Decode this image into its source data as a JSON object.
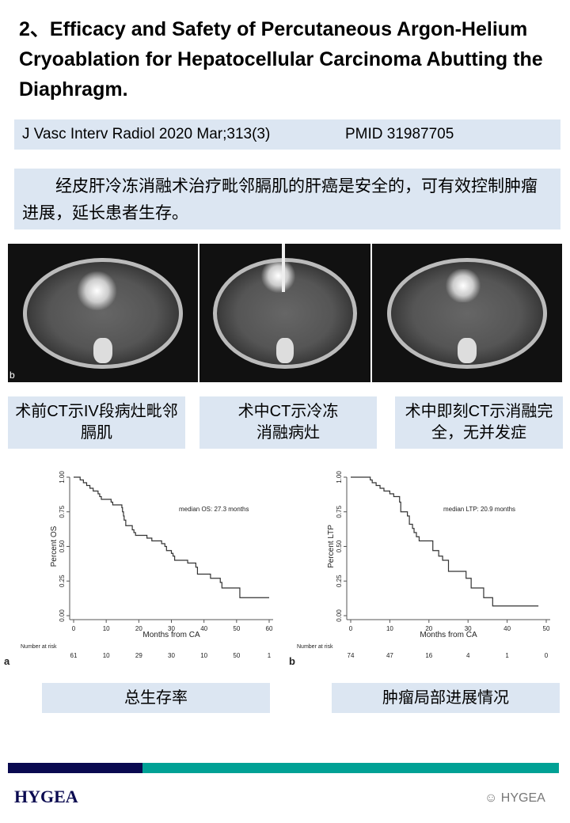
{
  "title": "2、Efficacy and Safety of Percutaneous Argon-Helium Cryoablation for Hepatocellular Carcinoma Abutting the Diaphragm.",
  "citation": {
    "journal": "J Vasc Interv Radiol 2020 Mar;313(3)",
    "pmid": "PMID 31987705"
  },
  "summary": "经皮肝冷冻消融术治疗毗邻膈肌的肝癌是安全的，可有效控制肿瘤进展，延长患者生存。",
  "images": [
    {
      "caption": "术前CT示IV段病灶毗邻膈肌"
    },
    {
      "caption": "术中CT示冷冻消融病灶"
    },
    {
      "caption": "术中即刻CT示消融完全，无并发症"
    }
  ],
  "image_corner_label": "b",
  "chart_data": [
    {
      "type": "line",
      "panel": "a",
      "xlabel": "Months from CA",
      "ylabel": "Percent OS",
      "xlim": [
        0,
        60
      ],
      "ylim": [
        0,
        1
      ],
      "xticks": [
        "0",
        "10",
        "20",
        "30",
        "40",
        "50",
        "60"
      ],
      "yticks": [
        "0.00",
        "0.25",
        "0.50",
        "0.75",
        "1.00"
      ],
      "annotation": "median OS: 27.3 months",
      "risk_label": "Number at risk",
      "risk": [
        "61",
        "10",
        "29",
        "30",
        "10",
        "50",
        "1"
      ],
      "steps": [
        [
          0,
          1
        ],
        [
          2,
          0.98
        ],
        [
          3,
          0.96
        ],
        [
          4,
          0.94
        ],
        [
          5,
          0.92
        ],
        [
          6,
          0.9
        ],
        [
          7.5,
          0.88
        ],
        [
          8,
          0.86
        ],
        [
          8.5,
          0.84
        ],
        [
          11.5,
          0.82
        ],
        [
          12,
          0.8
        ],
        [
          14.8,
          0.78
        ],
        [
          15,
          0.75
        ],
        [
          15.3,
          0.72
        ],
        [
          15.5,
          0.69
        ],
        [
          16,
          0.65
        ],
        [
          18,
          0.62
        ],
        [
          18.5,
          0.6
        ],
        [
          19,
          0.58
        ],
        [
          22.5,
          0.56
        ],
        [
          24,
          0.54
        ],
        [
          27,
          0.52
        ],
        [
          28,
          0.5
        ],
        [
          28.5,
          0.47
        ],
        [
          30,
          0.45
        ],
        [
          30.5,
          0.43
        ],
        [
          31,
          0.4
        ],
        [
          35,
          0.38
        ],
        [
          37.5,
          0.35
        ],
        [
          38,
          0.3
        ],
        [
          42,
          0.27
        ],
        [
          45,
          0.24
        ],
        [
          45.5,
          0.2
        ],
        [
          51,
          0.13
        ],
        [
          60,
          0.13
        ]
      ]
    },
    {
      "type": "line",
      "panel": "b",
      "xlabel": "Months from CA",
      "ylabel": "Percent LTP",
      "xlim": [
        0,
        50
      ],
      "ylim": [
        0,
        1
      ],
      "xticks": [
        "0",
        "10",
        "20",
        "30",
        "40",
        "50"
      ],
      "yticks": [
        "0.00",
        "0.25",
        "0.50",
        "0.75",
        "1.00"
      ],
      "annotation": "median LTP: 20.9 months",
      "risk_label": "Number at risk",
      "risk": [
        "74",
        "47",
        "16",
        "4",
        "1",
        "0"
      ],
      "steps": [
        [
          0,
          1
        ],
        [
          5,
          0.98
        ],
        [
          5.5,
          0.96
        ],
        [
          6.5,
          0.94
        ],
        [
          7.5,
          0.92
        ],
        [
          8.5,
          0.9
        ],
        [
          10,
          0.88
        ],
        [
          11,
          0.86
        ],
        [
          12.5,
          0.82
        ],
        [
          12.8,
          0.75
        ],
        [
          14.5,
          0.72
        ],
        [
          15,
          0.66
        ],
        [
          15.8,
          0.63
        ],
        [
          16.2,
          0.6
        ],
        [
          16.8,
          0.57
        ],
        [
          17.5,
          0.54
        ],
        [
          21,
          0.47
        ],
        [
          22.5,
          0.43
        ],
        [
          23.5,
          0.4
        ],
        [
          25,
          0.32
        ],
        [
          29.5,
          0.27
        ],
        [
          30.8,
          0.2
        ],
        [
          34,
          0.13
        ],
        [
          36.3,
          0.07
        ],
        [
          48,
          0.07
        ]
      ]
    }
  ],
  "chart_labels": [
    "总生存率",
    "肿瘤局部进展情况"
  ],
  "footer": {
    "logo": "HYGEA",
    "watermark": "HYGEA",
    "bar_colors": [
      "#0a0a50",
      "#00a195"
    ]
  }
}
